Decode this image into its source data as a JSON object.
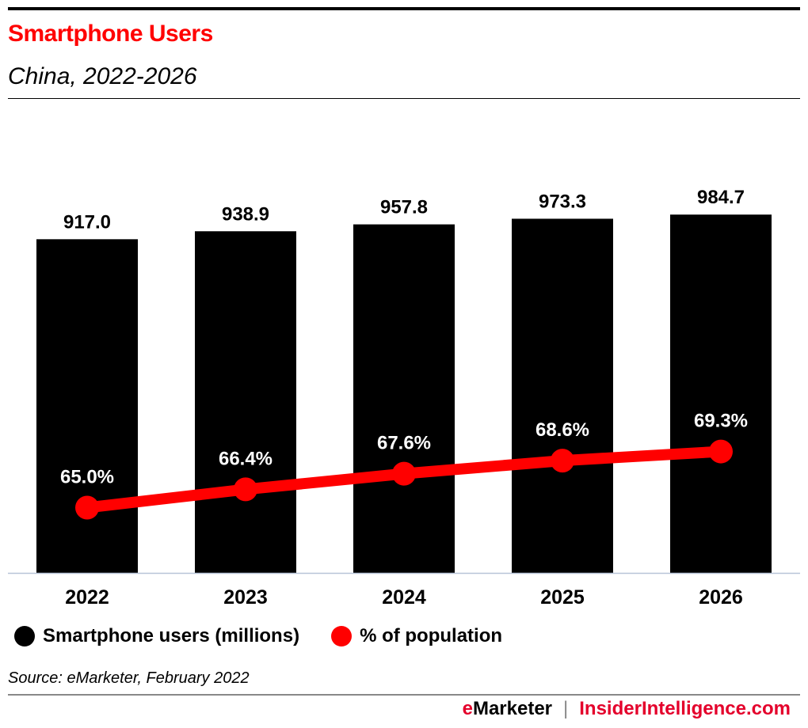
{
  "title": "Smartphone Users",
  "subtitle": "China, 2022-2026",
  "source": "Source: eMarketer, February 2022",
  "footer": {
    "brand_e": "e",
    "brand_rest": "Marketer",
    "separator": "|",
    "site": "InsiderIntelligence.com"
  },
  "colors": {
    "bars": "#000000",
    "line": "#ff0000",
    "title": "#ff0000"
  },
  "chart_data": {
    "type": "bar+line",
    "categories": [
      "2022",
      "2023",
      "2024",
      "2025",
      "2026"
    ],
    "series": [
      {
        "name": "Smartphone users (millions)",
        "type": "bar",
        "axis": "primary",
        "values": [
          917.0,
          938.9,
          957.8,
          973.3,
          984.7
        ],
        "labels": [
          "917.0",
          "938.9",
          "957.8",
          "973.3",
          "984.7"
        ]
      },
      {
        "name": "% of population",
        "type": "line",
        "axis": "secondary",
        "values": [
          65.0,
          66.4,
          67.6,
          68.6,
          69.3
        ],
        "labels": [
          "65.0%",
          "66.4%",
          "67.6%",
          "68.6%",
          "69.3%"
        ]
      }
    ],
    "ylim": [
      0,
      1270
    ],
    "ylim_secondary": [
      60,
      95.4
    ],
    "grid": false,
    "legend": "bottom-left"
  }
}
